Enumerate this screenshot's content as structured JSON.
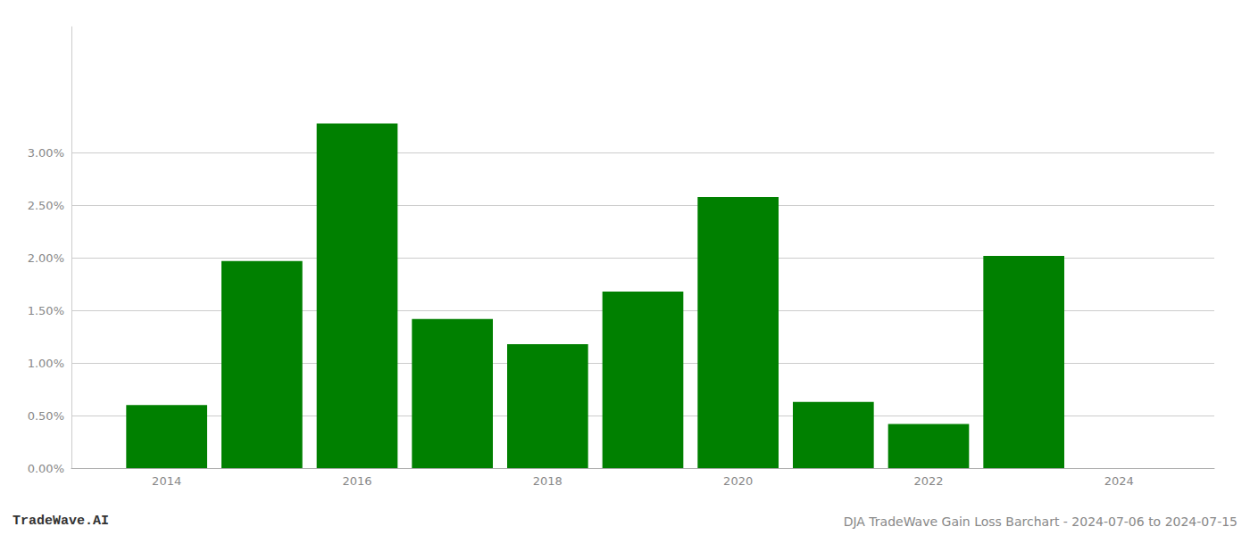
{
  "chart_data": {
    "type": "bar",
    "x": [
      2014,
      2015,
      2016,
      2017,
      2018,
      2019,
      2020,
      2021,
      2022,
      2023
    ],
    "values": [
      0.006,
      0.0197,
      0.0328,
      0.0142,
      0.0118,
      0.0168,
      0.0258,
      0.0063,
      0.0042,
      0.0202
    ],
    "color": "#008000",
    "xlim": [
      2013.0,
      2025.0
    ],
    "xticks": [
      2014,
      2016,
      2018,
      2020,
      2022,
      2024
    ],
    "ylim": [
      0,
      0.042
    ],
    "yticks": [
      {
        "value": 0.0,
        "label": "0.00%"
      },
      {
        "value": 0.005,
        "label": "0.50%"
      },
      {
        "value": 0.01,
        "label": "1.00%"
      },
      {
        "value": 0.015,
        "label": "1.50%"
      },
      {
        "value": 0.02,
        "label": "2.00%"
      },
      {
        "value": 0.025,
        "label": "2.50%"
      },
      {
        "value": 0.03,
        "label": "3.00%"
      }
    ],
    "grid": true,
    "annotations": [
      "TradeWave.AI",
      "DJA TradeWave Gain Loss Barchart - 2024-07-06 to 2024-07-15"
    ]
  }
}
